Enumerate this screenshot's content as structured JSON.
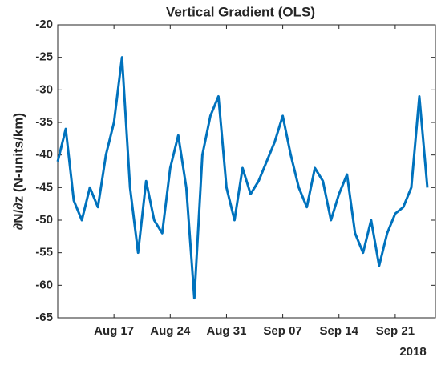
{
  "chart_data": {
    "type": "line",
    "title": "Vertical Gradient (OLS)",
    "ylabel": "∂N/∂z (N-units/km)",
    "year_label": "2018",
    "x": [
      "2018-08-10",
      "2018-08-11",
      "2018-08-12",
      "2018-08-13",
      "2018-08-14",
      "2018-08-15",
      "2018-08-16",
      "2018-08-17",
      "2018-08-18",
      "2018-08-19",
      "2018-08-20",
      "2018-08-21",
      "2018-08-22",
      "2018-08-23",
      "2018-08-24",
      "2018-08-25",
      "2018-08-26",
      "2018-08-27",
      "2018-08-28",
      "2018-08-29",
      "2018-08-30",
      "2018-08-31",
      "2018-09-01",
      "2018-09-02",
      "2018-09-03",
      "2018-09-04",
      "2018-09-05",
      "2018-09-06",
      "2018-09-07",
      "2018-09-08",
      "2018-09-09",
      "2018-09-10",
      "2018-09-11",
      "2018-09-12",
      "2018-09-13",
      "2018-09-14",
      "2018-09-15",
      "2018-09-16",
      "2018-09-17",
      "2018-09-18",
      "2018-09-19",
      "2018-09-20",
      "2018-09-21",
      "2018-09-22",
      "2018-09-23",
      "2018-09-24",
      "2018-09-25"
    ],
    "series": [
      {
        "name": "Vertical Gradient",
        "color": "#0072BD",
        "values": [
          -41,
          -36,
          -47,
          -50,
          -45,
          -48,
          -40,
          -35,
          -25,
          -45,
          -55,
          -44,
          -50,
          -52,
          -42,
          -37,
          -45,
          -62,
          -40,
          -34,
          -31,
          -45,
          -50,
          -42,
          -46,
          -44,
          -41,
          -38,
          -34,
          -40,
          -45,
          -48,
          -42,
          -44,
          -50,
          -46,
          -43,
          -52,
          -55,
          -50,
          -57,
          -52,
          -49,
          -48,
          -45,
          -31,
          -45
        ]
      }
    ],
    "xlim": [
      "2018-08-10",
      "2018-09-26"
    ],
    "xticks": [
      {
        "value": "2018-08-17",
        "label": "Aug 17"
      },
      {
        "value": "2018-08-24",
        "label": "Aug 24"
      },
      {
        "value": "2018-08-31",
        "label": "Aug 31"
      },
      {
        "value": "2018-09-07",
        "label": "Sep 07"
      },
      {
        "value": "2018-09-14",
        "label": "Sep 14"
      },
      {
        "value": "2018-09-21",
        "label": "Sep 21"
      }
    ],
    "ylim": [
      -65,
      -20
    ],
    "yticks": [
      -65,
      -60,
      -55,
      -50,
      -45,
      -40,
      -35,
      -30,
      -25,
      -20
    ],
    "grid": false
  }
}
